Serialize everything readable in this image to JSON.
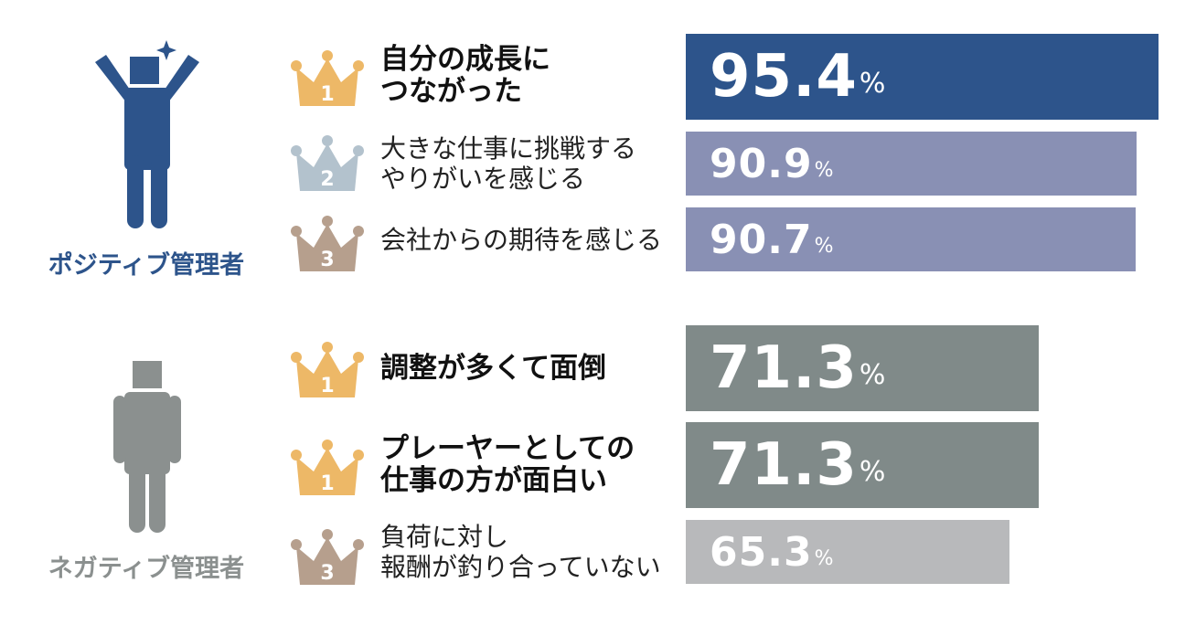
{
  "chart_data": {
    "type": "bar",
    "groups": [
      {
        "name": "ポジティブ管理者",
        "color": "#2d548b",
        "items": [
          {
            "rank": "1",
            "label": "自分の成長に\nつながった",
            "value": 95.4,
            "value_text": "95.4",
            "unit": "%",
            "bold": true,
            "bar_color": "#2d548b",
            "crown_color": "#edb867"
          },
          {
            "rank": "2",
            "label": "大きな仕事に挑戦する\nやりがいを感じる",
            "value": 90.9,
            "value_text": "90.9",
            "unit": "%",
            "bold": false,
            "bar_color": "#8990b4",
            "crown_color": "#b3c2cd"
          },
          {
            "rank": "3",
            "label": "会社からの期待を感じる",
            "value": 90.7,
            "value_text": "90.7",
            "unit": "%",
            "bold": false,
            "bar_color": "#8990b4",
            "crown_color": "#b69f8d"
          }
        ]
      },
      {
        "name": "ネガティブ管理者",
        "color": "#8b908f",
        "items": [
          {
            "rank": "1",
            "label": "調整が多くて面倒",
            "value": 71.3,
            "value_text": "71.3",
            "unit": "%",
            "bold": true,
            "bar_color": "#808a89",
            "crown_color": "#edb867"
          },
          {
            "rank": "1",
            "label": "プレーヤーとしての\n仕事の方が面白い",
            "value": 71.3,
            "value_text": "71.3",
            "unit": "%",
            "bold": true,
            "bar_color": "#808a89",
            "crown_color": "#edb867"
          },
          {
            "rank": "3",
            "label": "負荷に対し\n報酬が釣り合っていない",
            "value": 65.3,
            "value_text": "65.3",
            "unit": "%",
            "bold": false,
            "bar_color": "#b8b9bb",
            "crown_color": "#b69f8d"
          }
        ]
      }
    ],
    "figure_colors": {
      "positive": "#2d548b",
      "negative": "#8b908f"
    },
    "sparkle_color": "#2d548b"
  }
}
